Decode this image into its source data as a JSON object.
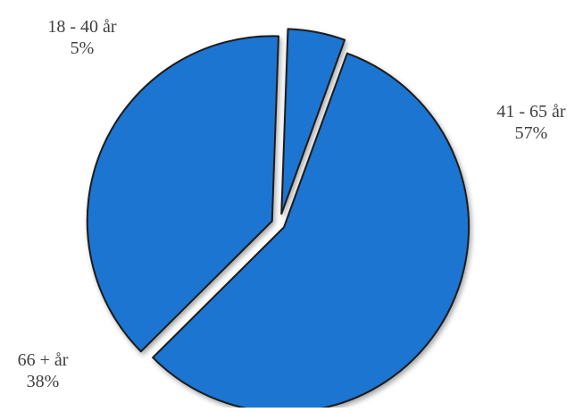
{
  "chart_data": {
    "type": "pie",
    "title": "",
    "legend": "none",
    "start_angle_deg": 20,
    "direction": "clockwise",
    "exploded": true,
    "colors": {
      "slice_fill": "#1b74d0",
      "slice_stroke": "#1a1a1a",
      "label_text": "#404040",
      "background": "#ffffff"
    },
    "slices": [
      {
        "category": "41 - 65 år",
        "value": 57,
        "value_label": "57%"
      },
      {
        "category": "66 + år",
        "value": 38,
        "value_label": "38%"
      },
      {
        "category": "18 - 40 år",
        "value": 5,
        "value_label": "5%"
      }
    ]
  }
}
